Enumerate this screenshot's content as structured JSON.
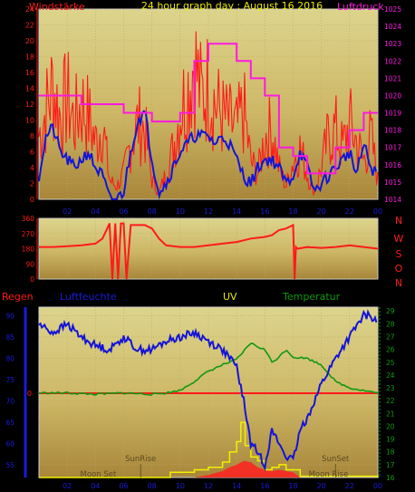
{
  "colors": {
    "background": "#000000",
    "plot_top": "#d8cf85",
    "plot_bottom": "#b08f3a",
    "frame": "#c8c8c8",
    "wind": "#ff1a1a",
    "pressure": "#ff18e0",
    "humidity": "#1414d8",
    "temperature": "#119911",
    "uv": "#f0f000",
    "rain_axis": "#1a1ad8",
    "axis_text_blue": "#1a1ad8",
    "axis_text_magenta": "#ff18e0"
  },
  "chart_data": [
    {
      "id": "wind-pressure",
      "type": "line",
      "title": "24 hour graph day : August 16 2016",
      "left_label": "Windstärke",
      "right_label": "Luftdruck",
      "x_ticks": [
        "02",
        "04",
        "06",
        "08",
        "10",
        "12",
        "14",
        "16",
        "18",
        "20",
        "22",
        "00"
      ],
      "y_left_ticks": [
        "0",
        "2",
        "4",
        "6",
        "8",
        "10",
        "12",
        "14",
        "16",
        "18",
        "20",
        "22",
        "24"
      ],
      "y_left_range": [
        0,
        24
      ],
      "y_right_ticks": [
        "1014",
        "1015",
        "1016",
        "1017",
        "1018",
        "1019",
        "1020",
        "1021",
        "1022",
        "1023",
        "1024",
        "1025"
      ],
      "y_right_range": [
        1014,
        1025
      ],
      "grid": true,
      "series": [
        {
          "key": "gust",
          "x_hours": [
            0.0,
            0.5,
            1.0,
            1.5,
            2.0,
            2.5,
            3.0,
            3.5,
            4.0,
            4.5,
            5.0,
            5.5,
            6.0,
            6.5,
            7.0,
            7.5,
            8.0,
            8.5,
            9.0,
            9.5,
            10.0,
            10.5,
            11.0,
            11.5,
            12.0,
            12.5,
            13.0,
            13.5,
            14.0,
            14.5,
            15.0,
            15.5,
            16.0,
            16.5,
            17.0,
            17.5,
            18.0,
            18.5,
            19.0,
            19.5,
            20.0,
            20.5,
            21.0,
            21.5,
            22.0,
            22.5,
            23.0,
            23.5,
            24.0
          ],
          "values": [
            10,
            14,
            18,
            13,
            16,
            12,
            15,
            13,
            9,
            12,
            3,
            2,
            4,
            9,
            12,
            11,
            3,
            1,
            4,
            8,
            14,
            17,
            22,
            16,
            18,
            15,
            13,
            12,
            11,
            14,
            6,
            4,
            10,
            11,
            5,
            2,
            6,
            8,
            4,
            1,
            5,
            10,
            11,
            8,
            12,
            9,
            6,
            10,
            3
          ]
        },
        {
          "key": "wind-mean",
          "x_hours": [
            0.0,
            0.5,
            1.0,
            1.5,
            2.0,
            2.5,
            3.0,
            3.5,
            4.0,
            4.5,
            5.0,
            5.5,
            6.0,
            6.5,
            7.0,
            7.5,
            8.0,
            8.5,
            9.0,
            9.5,
            10.0,
            10.5,
            11.0,
            11.5,
            12.0,
            12.5,
            13.0,
            13.5,
            14.0,
            14.5,
            15.0,
            15.5,
            16.0,
            16.5,
            17.0,
            17.5,
            18.0,
            18.5,
            19.0,
            19.5,
            20.0,
            20.5,
            21.0,
            21.5,
            22.0,
            22.5,
            23.0,
            23.5,
            24.0
          ],
          "values": [
            3,
            8,
            9,
            6,
            5,
            4,
            5,
            6,
            4,
            3,
            0,
            0,
            1,
            6,
            10,
            11,
            5,
            1,
            2,
            4,
            6,
            7,
            8,
            8,
            8,
            7,
            8,
            7,
            5,
            3,
            2,
            4,
            5,
            5,
            4,
            2,
            3,
            6,
            4,
            1,
            2,
            3,
            4,
            5,
            6,
            3,
            7,
            4,
            3
          ]
        },
        {
          "key": "pressure",
          "x_hours": [
            0,
            2,
            3,
            5,
            6,
            7,
            8,
            9,
            10,
            11,
            12,
            13,
            14,
            15,
            16,
            17,
            18,
            19,
            20,
            21,
            22,
            23,
            24
          ],
          "values": [
            1020,
            1020,
            1019.5,
            1019.5,
            1019,
            1019,
            1018.5,
            1018.5,
            1019,
            1022,
            1023,
            1023,
            1022,
            1021,
            1020,
            1017,
            1016.5,
            1015.5,
            1015.5,
            1017,
            1018,
            1019,
            1019
          ]
        }
      ]
    },
    {
      "id": "wind-direction",
      "type": "line",
      "y_ticks": [
        "0",
        "90",
        "180",
        "270",
        "360"
      ],
      "y_range": [
        0,
        360
      ],
      "compass_labels": [
        "N",
        "W",
        "S",
        "O",
        "N"
      ],
      "grid": true,
      "series": [
        {
          "key": "direction",
          "x_hours": [
            0,
            1,
            2,
            3,
            4,
            4.5,
            5,
            5.2,
            5.4,
            5.6,
            5.8,
            6.0,
            6.2,
            6.5,
            7,
            7.5,
            8,
            8.5,
            9,
            10,
            11,
            12,
            13,
            14,
            15,
            16,
            16.5,
            17,
            17.5,
            18,
            18.1,
            18.2,
            18.3,
            19,
            20,
            21,
            22,
            23,
            24
          ],
          "values": [
            190,
            190,
            195,
            200,
            210,
            240,
            330,
            0,
            330,
            0,
            330,
            330,
            0,
            320,
            320,
            320,
            300,
            240,
            200,
            190,
            190,
            200,
            210,
            220,
            240,
            250,
            260,
            290,
            300,
            320,
            0,
            190,
            180,
            190,
            185,
            190,
            200,
            190,
            180
          ]
        }
      ]
    },
    {
      "id": "rain-humidity-uv-temp",
      "type": "line",
      "labels": {
        "rain": "Regen",
        "humidity": "Luftfeuchte",
        "uv": "UV",
        "temperature": "Temperatur"
      },
      "y_left_ticks": [
        "55",
        "60",
        "65",
        "70",
        "75",
        "80",
        "85",
        "90"
      ],
      "y_left_range": [
        52,
        92
      ],
      "rain_zero_label": "0",
      "y_right_ticks": [
        "16",
        "17",
        "18",
        "19",
        "20",
        "21",
        "22",
        "23",
        "24",
        "25",
        "26",
        "27",
        "28",
        "29"
      ],
      "y_right_range": [
        16,
        29.3
      ],
      "x_ticks": [
        "02",
        "04",
        "06",
        "08",
        "10",
        "12",
        "14",
        "16",
        "18",
        "20",
        "22",
        "00"
      ],
      "annotations": [
        {
          "text": "SunRise",
          "x_hours": 7.2
        },
        {
          "text": "SunSet",
          "x_hours": 21.0
        },
        {
          "text": "Moon Set",
          "x_hours": 4.2
        },
        {
          "text": "Moon Rise",
          "x_hours": 20.5
        }
      ],
      "grid": true,
      "series": [
        {
          "key": "humidity",
          "x_hours": [
            0,
            1,
            2,
            3,
            4,
            5,
            6,
            7,
            8,
            9,
            10,
            11,
            12,
            13,
            14,
            14.5,
            15,
            15.5,
            16,
            16.5,
            17,
            17.5,
            18,
            18.5,
            19,
            20,
            21,
            22,
            23,
            23.5,
            24
          ],
          "values": [
            88,
            86,
            88,
            85,
            83,
            82,
            85,
            82,
            82,
            84,
            85,
            86,
            84,
            82,
            78,
            70,
            60,
            58,
            55,
            63,
            60,
            57,
            56,
            63,
            66,
            74,
            80,
            85,
            90,
            90,
            88
          ]
        },
        {
          "key": "temperature",
          "x_hours": [
            0,
            2,
            4,
            6,
            8,
            9,
            10,
            11,
            12,
            13,
            14,
            15,
            15.5,
            16,
            16.5,
            17,
            17.5,
            18,
            19,
            20,
            21,
            22,
            23,
            24
          ],
          "values": [
            22.6,
            22.6,
            22.5,
            22.6,
            22.5,
            22.6,
            22.8,
            23.5,
            24.3,
            24.8,
            25.2,
            26.5,
            26.2,
            26.0,
            25.0,
            25.4,
            26.0,
            25.4,
            25.3,
            24.8,
            23.5,
            23.0,
            22.8,
            22.6
          ]
        },
        {
          "key": "uv",
          "x_hours": [
            0,
            9,
            9.3,
            10,
            11,
            12,
            13,
            13.5,
            14,
            14.3,
            14.6,
            15,
            15.5,
            16,
            16.5,
            17,
            17.5,
            18,
            18.5,
            24
          ],
          "values": [
            16,
            16,
            16.4,
            16.4,
            16.6,
            16.8,
            17.2,
            18,
            18.8,
            20.3,
            18.5,
            17.6,
            17.3,
            16.6,
            16.8,
            17.0,
            16.6,
            16.6,
            16.1,
            16
          ]
        },
        {
          "key": "uv-area",
          "x_hours": [
            0,
            11,
            12,
            13,
            13.5,
            14,
            14.5,
            15,
            15.5,
            16,
            16.5,
            17,
            17.5,
            18,
            18.5,
            24
          ],
          "values": [
            16,
            16,
            16.2,
            16.5,
            16.8,
            17.0,
            17.3,
            17.2,
            16.8,
            16.6,
            16.5,
            16.6,
            16.5,
            16.4,
            16.0,
            16
          ]
        }
      ]
    }
  ]
}
